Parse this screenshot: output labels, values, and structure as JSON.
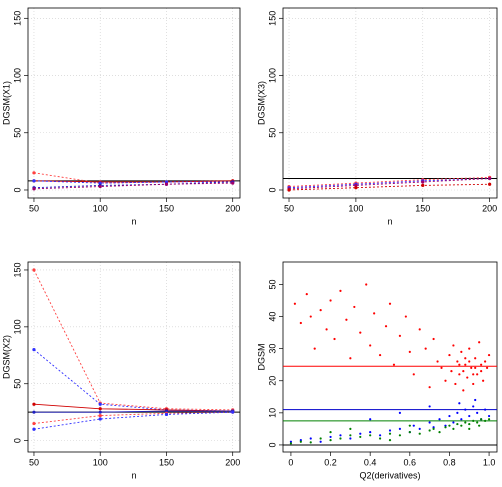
{
  "chart_data": [
    {
      "type": "line",
      "xlabel": "n",
      "ylabel": "DGSM(X1)",
      "x": [
        50,
        100,
        150,
        200
      ],
      "xlim": [
        45.5,
        205.5
      ],
      "ylim": [
        -7,
        159
      ],
      "xticks": [
        50,
        100,
        150,
        200
      ],
      "yticks": [
        0,
        50,
        100,
        150
      ],
      "grid": true,
      "hlines": [
        {
          "value": 8,
          "color": "#000000"
        }
      ],
      "series": [
        {
          "color": "#ff4040",
          "linestyle": "dotted",
          "values": [
            15,
            6,
            7,
            8
          ]
        },
        {
          "color": "#d00000",
          "linestyle": "solid",
          "values": [
            8,
            7,
            7,
            8
          ]
        },
        {
          "color": "#3030ff",
          "linestyle": "dotted",
          "values": [
            8,
            6,
            7,
            7
          ]
        },
        {
          "color": "#2020c0",
          "linestyle": "dotted",
          "values": [
            2,
            4,
            5,
            7
          ]
        },
        {
          "color": "#a0006a",
          "linestyle": "dotted",
          "values": [
            1,
            3,
            5,
            6
          ]
        }
      ]
    },
    {
      "type": "line",
      "xlabel": "n",
      "ylabel": "DGSM(X3)",
      "x": [
        50,
        100,
        150,
        200
      ],
      "xlim": [
        45.5,
        205.5
      ],
      "ylim": [
        -7,
        159
      ],
      "xticks": [
        50,
        100,
        150,
        200
      ],
      "yticks": [
        0,
        50,
        100,
        150
      ],
      "grid": true,
      "hlines": [
        {
          "value": 10,
          "color": "#000000"
        }
      ],
      "series": [
        {
          "color": "#ff4040",
          "linestyle": "dotted",
          "values": [
            3,
            6,
            9,
            11
          ]
        },
        {
          "color": "#3030ff",
          "linestyle": "dotted",
          "values": [
            2,
            5,
            8,
            10
          ]
        },
        {
          "color": "#a0006a",
          "linestyle": "dotted",
          "values": [
            1,
            4,
            7,
            10
          ]
        },
        {
          "color": "#d00000",
          "linestyle": "dotted",
          "values": [
            0,
            2,
            4,
            5
          ]
        }
      ]
    },
    {
      "type": "line",
      "xlabel": "n",
      "ylabel": "DGSM(X2)",
      "x": [
        50,
        100,
        150,
        200
      ],
      "xlim": [
        45.5,
        205.5
      ],
      "ylim": [
        -10,
        157
      ],
      "xticks": [
        50,
        100,
        150,
        200
      ],
      "yticks": [
        0,
        50,
        100,
        150
      ],
      "grid": true,
      "hlines": [
        {
          "value": 25,
          "color": "#000000"
        }
      ],
      "series": [
        {
          "color": "#ff4040",
          "linestyle": "dotted",
          "values": [
            150,
            33,
            28,
            27
          ]
        },
        {
          "color": "#3030ff",
          "linestyle": "dotted",
          "values": [
            80,
            32,
            27,
            26
          ]
        },
        {
          "color": "#d00000",
          "linestyle": "solid",
          "values": [
            32,
            28,
            27,
            26
          ]
        },
        {
          "color": "#2020c0",
          "linestyle": "solid",
          "values": [
            25,
            25,
            26,
            26
          ]
        },
        {
          "color": "#ff4040",
          "linestyle": "dotted",
          "values": [
            15,
            22,
            24,
            25
          ]
        },
        {
          "color": "#3030ff",
          "linestyle": "dotted",
          "values": [
            10,
            19,
            23,
            25
          ]
        }
      ]
    },
    {
      "type": "scatter",
      "xlabel": "Q2(derivatives)",
      "ylabel": "DGSM",
      "xlim": [
        -0.04,
        1.04
      ],
      "ylim": [
        -2.2,
        57
      ],
      "xticks": [
        0.0,
        0.2,
        0.4,
        0.6,
        0.8,
        {
          "value": 1,
          "label": "1.0"
        }
      ],
      "yticks": [
        0,
        10,
        20,
        30,
        40,
        50
      ],
      "grid": false,
      "hlines": [
        {
          "value": 24.5,
          "color": "#ff0000"
        },
        {
          "value": 11,
          "color": "#0000cc"
        },
        {
          "value": 7.5,
          "color": "#008000"
        },
        {
          "value": 0,
          "color": "#000000"
        }
      ],
      "series": [
        {
          "color": "#ff0000",
          "x": [
            0.02,
            0.05,
            0.08,
            0.1,
            0.12,
            0.15,
            0.18,
            0.2,
            0.22,
            0.25,
            0.28,
            0.3,
            0.32,
            0.35,
            0.38,
            0.4,
            0.42,
            0.45,
            0.48,
            0.5,
            0.52,
            0.55,
            0.58,
            0.6,
            0.62,
            0.65,
            0.68,
            0.7,
            0.72,
            0.74,
            0.76,
            0.78,
            0.8,
            0.81,
            0.82,
            0.83,
            0.84,
            0.85,
            0.86,
            0.87,
            0.88,
            0.89,
            0.9,
            0.91,
            0.92,
            0.93,
            0.94,
            0.95,
            0.96,
            0.97,
            0.98,
            0.99,
            1.0,
            0.87,
            0.9,
            0.93,
            0.96,
            0.85,
            0.88,
            0.92
          ],
          "values": [
            44,
            38,
            47,
            40,
            30,
            42,
            36,
            45,
            33,
            48,
            39,
            27,
            43,
            35,
            50,
            31,
            41,
            28,
            37,
            44,
            25,
            34,
            40,
            29,
            22,
            36,
            30,
            18,
            33,
            26,
            24,
            20,
            28,
            23,
            31,
            19,
            26,
            22,
            29,
            17,
            25,
            21,
            30,
            24,
            19,
            27,
            22,
            32,
            23,
            20,
            26,
            24,
            28,
            23,
            26,
            24,
            25,
            25,
            27,
            22
          ]
        },
        {
          "color": "#0000ff",
          "x": [
            0.0,
            0.05,
            0.1,
            0.15,
            0.2,
            0.25,
            0.3,
            0.35,
            0.4,
            0.45,
            0.5,
            0.55,
            0.6,
            0.62,
            0.65,
            0.7,
            0.72,
            0.75,
            0.78,
            0.8,
            0.82,
            0.84,
            0.86,
            0.88,
            0.9,
            0.92,
            0.94,
            0.96,
            0.98,
            1.0,
            0.85,
            0.93,
            0.7,
            0.55,
            0.4
          ],
          "values": [
            1,
            1.5,
            2,
            1,
            2.5,
            3,
            2,
            3.5,
            4,
            3,
            4.5,
            5,
            4,
            6,
            5,
            7,
            5.5,
            8,
            6,
            9,
            7,
            10,
            8,
            11,
            9,
            12,
            10,
            8,
            11,
            9,
            13,
            14,
            12,
            10,
            8
          ]
        },
        {
          "color": "#008000",
          "x": [
            0.0,
            0.05,
            0.1,
            0.15,
            0.2,
            0.25,
            0.3,
            0.35,
            0.4,
            0.45,
            0.5,
            0.55,
            0.6,
            0.65,
            0.7,
            0.72,
            0.75,
            0.78,
            0.8,
            0.82,
            0.84,
            0.86,
            0.88,
            0.9,
            0.92,
            0.94,
            0.96,
            0.98,
            1.0,
            0.6,
            0.3,
            0.2,
            0.9,
            0.95,
            0.5
          ],
          "values": [
            0.5,
            1,
            0.8,
            2,
            1.5,
            2,
            3,
            2.5,
            3,
            2,
            3.5,
            3,
            4,
            3.5,
            4.5,
            5,
            4,
            5.5,
            6,
            5,
            6.5,
            6,
            7,
            6.5,
            7.5,
            7,
            8,
            7.5,
            8,
            6,
            5,
            4,
            5,
            6,
            1.5
          ]
        }
      ]
    }
  ]
}
